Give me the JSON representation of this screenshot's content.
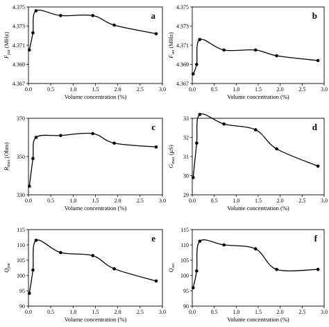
{
  "chart_data": [
    {
      "type": "line",
      "panel_label": "a",
      "ylabel": {
        "main": "F",
        "sub": "par",
        "unit": " (MHz)"
      },
      "xlabel": "Volume concentration (%)",
      "xlim": [
        0.0,
        3.0
      ],
      "ylim": [
        4.367,
        4.375
      ],
      "xticks": [
        "0.0",
        "0.5",
        "1.0",
        "1.5",
        "2.0",
        "2.5",
        "3.0"
      ],
      "yticks": [
        "4.367",
        "4.369",
        "4.371",
        "4.373",
        "4.375"
      ],
      "x": [
        0.02,
        0.1,
        0.17,
        0.72,
        1.44,
        1.92,
        2.86
      ],
      "y": [
        4.3705,
        4.3723,
        4.3746,
        4.3741,
        4.3741,
        4.3731,
        4.3722
      ]
    },
    {
      "type": "line",
      "panel_label": "b",
      "ylabel": {
        "main": "F",
        "sub": "ser",
        "unit": " (MHz)"
      },
      "xlabel": "Volume concentration (%)",
      "xlim": [
        0.0,
        3.0
      ],
      "ylim": [
        4.367,
        4.375
      ],
      "xticks": [
        "0.0",
        "0.5",
        "1.0",
        "1.5",
        "2.0",
        "2.5",
        "3.0"
      ],
      "yticks": [
        "4.367",
        "4.369",
        "4.371",
        "4.373",
        "4.375"
      ],
      "x": [
        0.02,
        0.1,
        0.17,
        0.72,
        1.44,
        1.92,
        2.86
      ],
      "y": [
        4.368,
        4.369,
        4.3716,
        4.3705,
        4.3705,
        4.3699,
        4.3694
      ]
    },
    {
      "type": "line",
      "panel_label": "c",
      "ylabel": {
        "main": "R",
        "sub": "max",
        "unit": " (Ohm)"
      },
      "xlabel": "Volume concentration (%)",
      "xlim": [
        0.0,
        3.0
      ],
      "ylim": [
        330,
        370
      ],
      "xticks": [
        "0.0",
        "0.5",
        "1.0",
        "1.5",
        "2.0",
        "2.5",
        "3.0"
      ],
      "yticks": [
        "330",
        "350",
        "370"
      ],
      "x": [
        0.02,
        0.1,
        0.17,
        0.72,
        1.44,
        1.92,
        2.86
      ],
      "y": [
        334.5,
        349,
        360,
        361,
        362,
        357,
        355
      ]
    },
    {
      "type": "line",
      "panel_label": "d",
      "ylabel": {
        "main": "G",
        "sub": "max",
        "unit": " (μS)"
      },
      "xlabel": "Volume concentration (%)",
      "xlim": [
        0.0,
        3.0
      ],
      "ylim": [
        29,
        33
      ],
      "xticks": [
        "0.0",
        "0.5",
        "1.0",
        "1.5",
        "2.0",
        "2.5",
        "3.0"
      ],
      "yticks": [
        "29",
        "30",
        "31",
        "32",
        "33"
      ],
      "x": [
        0.02,
        0.1,
        0.17,
        0.72,
        1.44,
        1.92,
        2.86
      ],
      "y": [
        29.9,
        31.7,
        33.2,
        32.7,
        32.4,
        31.4,
        30.5
      ]
    },
    {
      "type": "line",
      "panel_label": "e",
      "ylabel": {
        "main": "Q",
        "sub": "par",
        "unit": ""
      },
      "xlabel": "Volume concentration (%)",
      "xlim": [
        0.0,
        3.0
      ],
      "ylim": [
        90,
        115
      ],
      "xticks": [
        "0.0",
        "0.5",
        "1.0",
        "1.5",
        "2.0",
        "2.5",
        "3.0"
      ],
      "yticks": [
        "90",
        "95",
        "100",
        "105",
        "110",
        "115"
      ],
      "x": [
        0.02,
        0.1,
        0.17,
        0.72,
        1.44,
        1.92,
        2.86
      ],
      "y": [
        94.2,
        101.8,
        111.5,
        107.5,
        106.5,
        102.2,
        98.2
      ]
    },
    {
      "type": "line",
      "panel_label": "f",
      "ylabel": {
        "main": "Q",
        "sub": "ser",
        "unit": ""
      },
      "xlabel": "Volume concentration (%)",
      "xlim": [
        0.0,
        3.0
      ],
      "ylim": [
        90,
        115
      ],
      "xticks": [
        "0.0",
        "0.5",
        "1.0",
        "1.5",
        "2.0",
        "2.5",
        "3.0"
      ],
      "yticks": [
        "90",
        "95",
        "100",
        "105",
        "110",
        "115"
      ],
      "x": [
        0.02,
        0.1,
        0.17,
        0.72,
        1.44,
        1.92,
        2.86
      ],
      "y": [
        96,
        101.5,
        111.2,
        110,
        108.7,
        102,
        102
      ]
    }
  ]
}
